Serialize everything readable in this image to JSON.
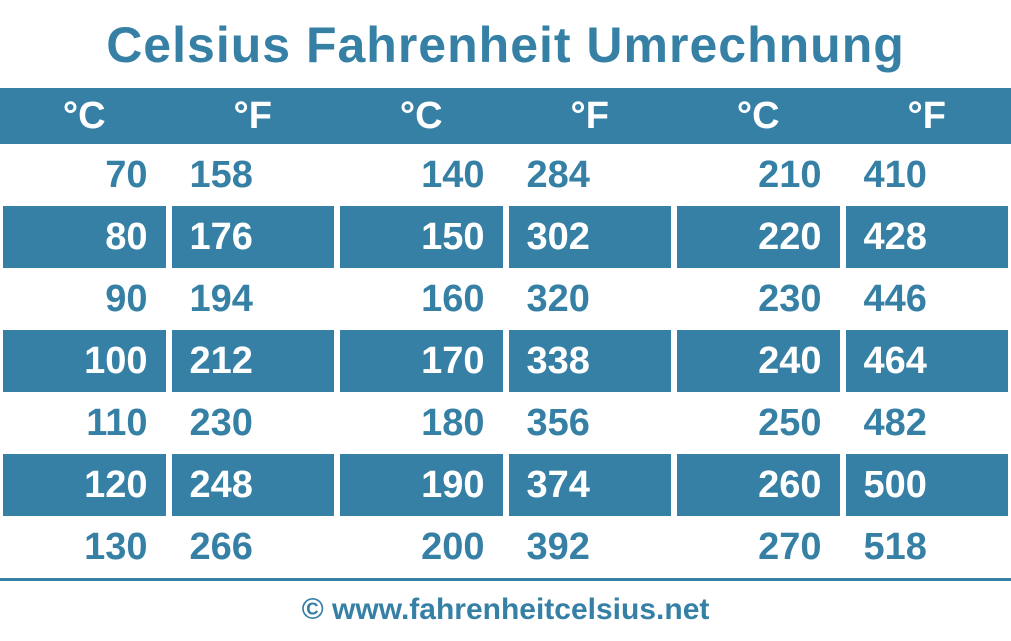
{
  "title": "Celsius Fahrenheit Umrechnung",
  "footer": "© www.fahrenheitcelsius.net",
  "colors": {
    "primary": "#3680a6",
    "background": "#ffffff",
    "text_on_primary": "#ffffff"
  },
  "table": {
    "column_headers": {
      "c": "°C",
      "f": "°F"
    },
    "num_column_pairs": 3,
    "rows": [
      {
        "style": "odd",
        "pairs": [
          {
            "c": "70",
            "f": "158"
          },
          {
            "c": "140",
            "f": "284"
          },
          {
            "c": "210",
            "f": "410"
          }
        ]
      },
      {
        "style": "even",
        "pairs": [
          {
            "c": "80",
            "f": "176"
          },
          {
            "c": "150",
            "f": "302"
          },
          {
            "c": "220",
            "f": "428"
          }
        ]
      },
      {
        "style": "odd",
        "pairs": [
          {
            "c": "90",
            "f": "194"
          },
          {
            "c": "160",
            "f": "320"
          },
          {
            "c": "230",
            "f": "446"
          }
        ]
      },
      {
        "style": "even",
        "pairs": [
          {
            "c": "100",
            "f": "212"
          },
          {
            "c": "170",
            "f": "338"
          },
          {
            "c": "240",
            "f": "464"
          }
        ]
      },
      {
        "style": "odd",
        "pairs": [
          {
            "c": "110",
            "f": "230"
          },
          {
            "c": "180",
            "f": "356"
          },
          {
            "c": "250",
            "f": "482"
          }
        ]
      },
      {
        "style": "even",
        "pairs": [
          {
            "c": "120",
            "f": "248"
          },
          {
            "c": "190",
            "f": "374"
          },
          {
            "c": "260",
            "f": "500"
          }
        ]
      },
      {
        "style": "odd",
        "pairs": [
          {
            "c": "130",
            "f": "266"
          },
          {
            "c": "200",
            "f": "392"
          },
          {
            "c": "270",
            "f": "518"
          }
        ]
      }
    ]
  },
  "typography": {
    "title_fontsize": 50,
    "header_fontsize": 38,
    "cell_fontsize": 38,
    "footer_fontsize": 30,
    "font_weight": "bold",
    "font_family": "Arial"
  }
}
